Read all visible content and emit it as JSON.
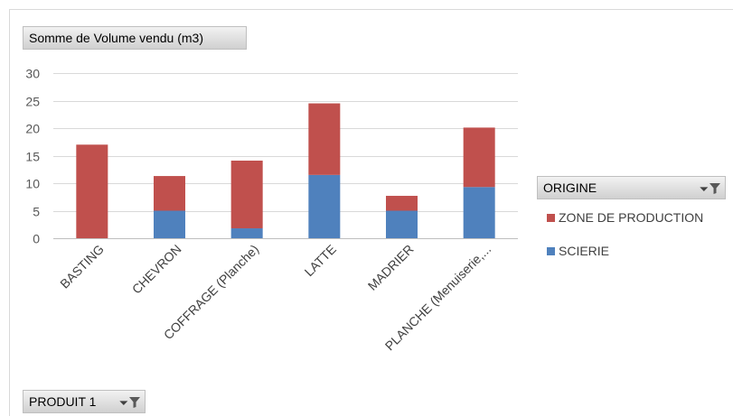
{
  "value_field_button": {
    "label": "Somme de Volume vendu (m3)"
  },
  "legend_field_button": {
    "label": "ORIGINE",
    "filter_icon": "filter-dropdown-icon"
  },
  "axis_field_button": {
    "label": "PRODUIT 1",
    "filter_icon": "filter-dropdown-icon"
  },
  "colors": {
    "zone": "#c0504d",
    "scierie": "#4f81bd",
    "grid": "#d9d9d9"
  },
  "chart_data": {
    "type": "bar",
    "stacked": true,
    "categories": [
      "BASTING",
      "CHEVRON",
      "COFFRAGE (Planche)",
      "LATTE",
      "MADRIER",
      "PLANCHE (Menuiserie,..."
    ],
    "series": [
      {
        "name": "SCIERIE",
        "values": [
          0,
          5,
          1.8,
          11.5,
          5,
          9.3
        ],
        "color": "#4f81bd"
      },
      {
        "name": "ZONE DE PRODUCTION",
        "values": [
          17,
          6.3,
          12.3,
          13,
          2.7,
          10.8
        ],
        "color": "#c0504d"
      }
    ],
    "legend_order": [
      "ZONE DE PRODUCTION",
      "SCIERIE"
    ],
    "yticks": [
      0,
      5,
      10,
      15,
      20,
      25,
      30
    ],
    "ylim": [
      0,
      30
    ],
    "grid": true,
    "legend_position": "right"
  }
}
